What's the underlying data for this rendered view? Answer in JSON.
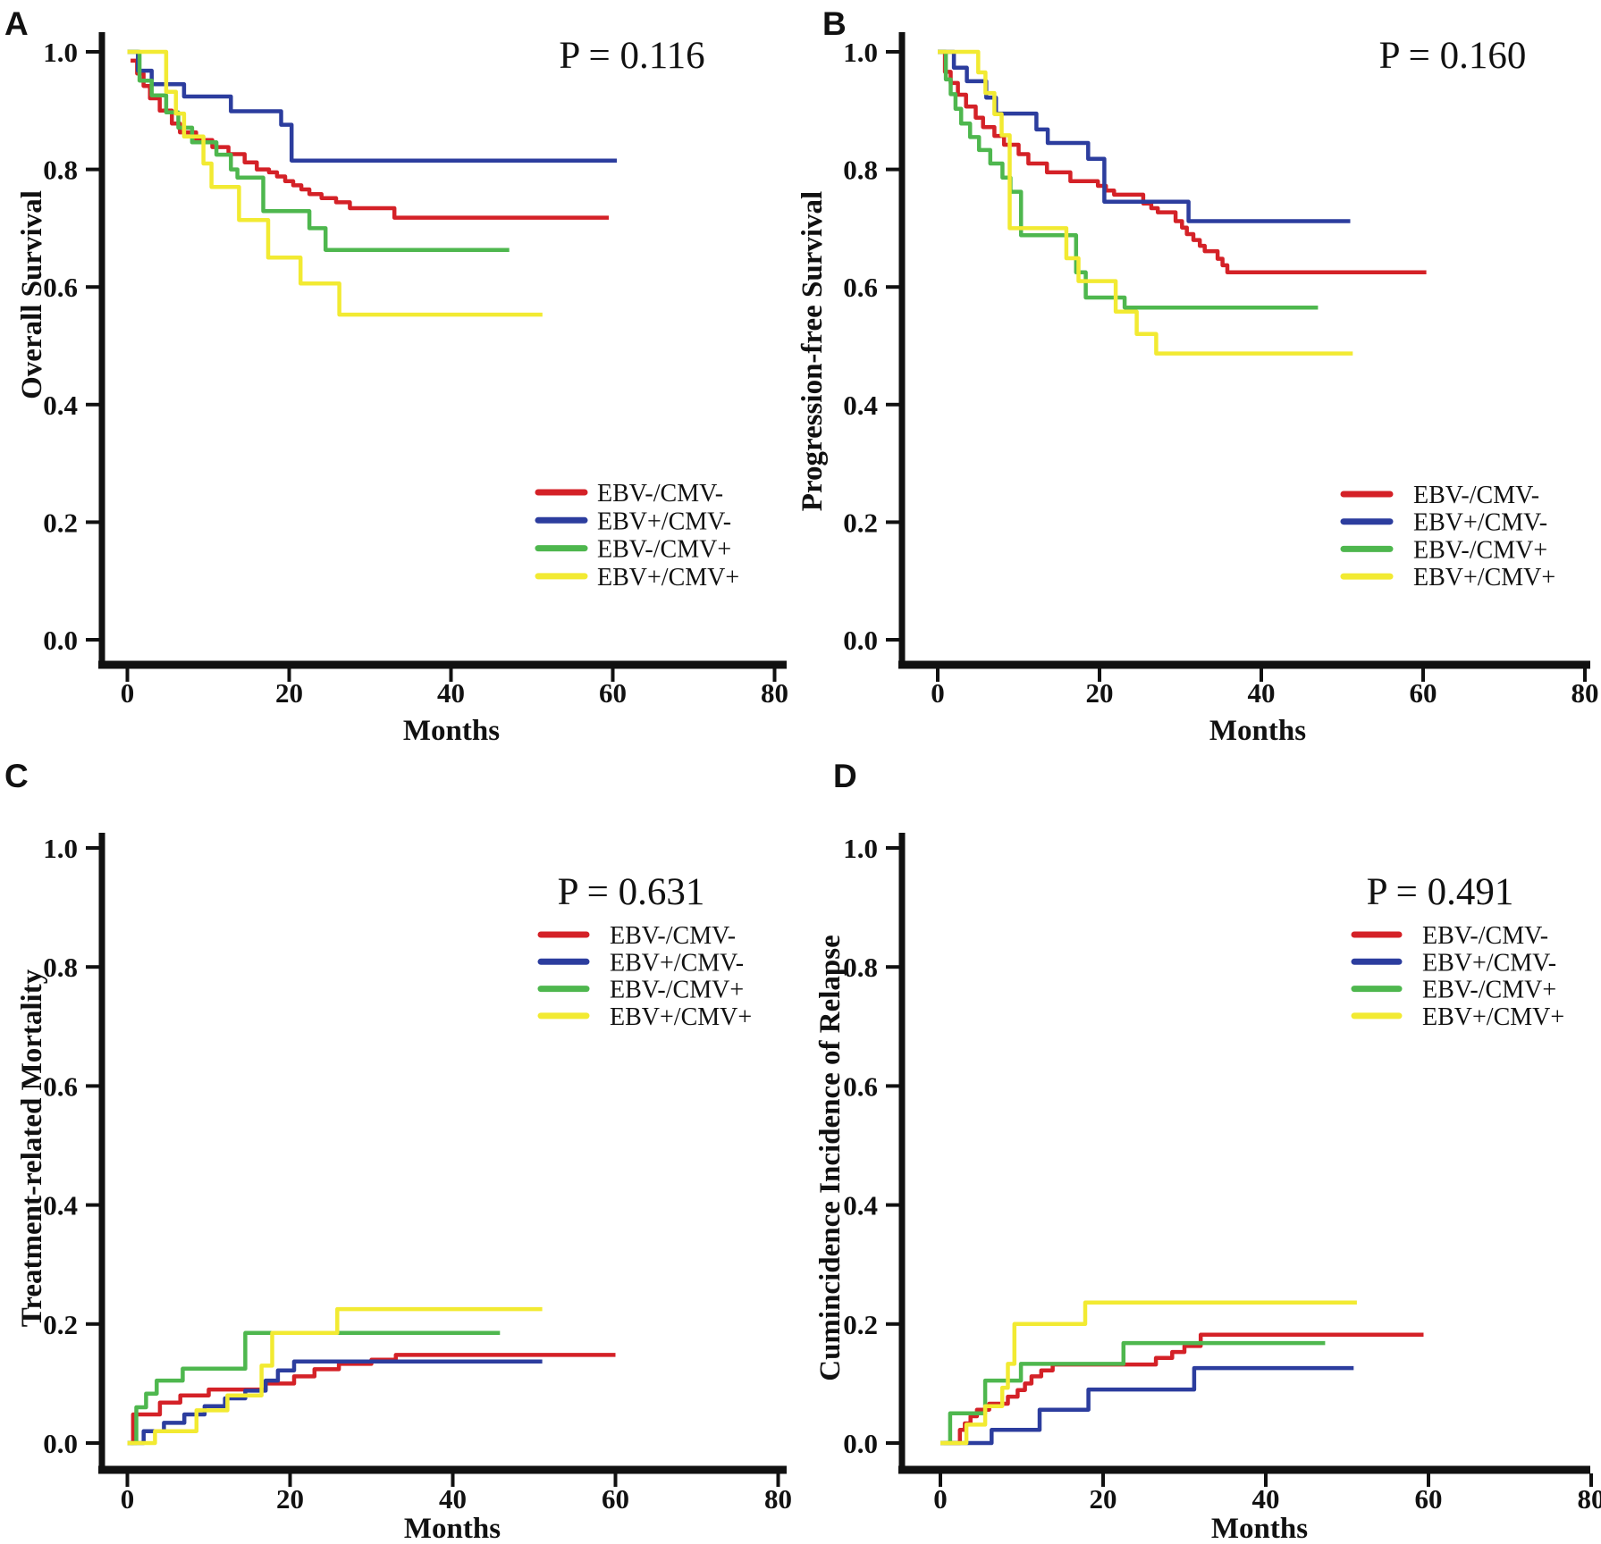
{
  "figure": {
    "background": "#ffffff",
    "description": "Four-panel Kaplan-Meier survival and cumulative incidence step curves comparing EBV/CMV reactivation groups",
    "axis_color": "#111111"
  },
  "chart_data": [
    {
      "panel_letter": "A",
      "type": "line",
      "subtype": "kaplan-meier-step",
      "p_value": "P = 0.116",
      "xlabel": "Months",
      "ylabel": "Overall Survival",
      "xlim": [
        0,
        80
      ],
      "ylim": [
        0.0,
        1.0
      ],
      "xticks": [
        0,
        20,
        40,
        60,
        80
      ],
      "xtick_labels": [
        "0",
        "20",
        "40",
        "60",
        "80"
      ],
      "yticks": [
        1.0,
        0.8,
        0.6,
        0.4,
        0.2,
        0.0
      ],
      "ytick_labels": [
        "1.0",
        "0.8",
        "0.6",
        "0.4",
        "0.2",
        "0.0"
      ],
      "grid": false,
      "legend_position": "lower-right",
      "series": [
        {
          "name": "EBV-/CMV-",
          "color": "#d42127",
          "points": [
            [
              0.4,
              0.985
            ],
            [
              1.2,
              0.963
            ],
            [
              2,
              0.942
            ],
            [
              2.8,
              0.921
            ],
            [
              4,
              0.9
            ],
            [
              5.5,
              0.878
            ],
            [
              6.5,
              0.863
            ],
            [
              8.5,
              0.85
            ],
            [
              10.5,
              0.838
            ],
            [
              12.5,
              0.826
            ],
            [
              14.5,
              0.812
            ],
            [
              16,
              0.8
            ],
            [
              17.5,
              0.795
            ],
            [
              18.5,
              0.788
            ],
            [
              19.5,
              0.78
            ],
            [
              20.5,
              0.773
            ],
            [
              21.5,
              0.766
            ],
            [
              22.5,
              0.758
            ],
            [
              24,
              0.751
            ],
            [
              25.8,
              0.744
            ],
            [
              27.5,
              0.734
            ],
            [
              33,
              0.718
            ]
          ],
          "end_month": 59.5
        },
        {
          "name": "EBV+/CMV-",
          "color": "#2c3d9e",
          "points": [
            [
              0,
              1.0
            ],
            [
              1.3,
              0.968
            ],
            [
              3,
              0.945
            ],
            [
              7,
              0.924
            ],
            [
              12.8,
              0.899
            ],
            [
              19,
              0.876
            ],
            [
              20.3,
              0.815
            ]
          ],
          "end_month": 60.5
        },
        {
          "name": "EBV-/CMV+",
          "color": "#4eb74e",
          "points": [
            [
              0,
              1.0
            ],
            [
              1.5,
              0.951
            ],
            [
              3,
              0.926
            ],
            [
              4.8,
              0.897
            ],
            [
              6.3,
              0.871
            ],
            [
              8,
              0.846
            ],
            [
              11,
              0.825
            ],
            [
              12.8,
              0.8
            ],
            [
              13.6,
              0.786
            ],
            [
              16.8,
              0.729
            ],
            [
              22.5,
              0.7
            ],
            [
              24.5,
              0.663
            ]
          ],
          "end_month": 47.2
        },
        {
          "name": "EBV+/CMV+",
          "color": "#f2ea32",
          "points": [
            [
              0,
              1.0
            ],
            [
              4.8,
              0.932
            ],
            [
              6,
              0.895
            ],
            [
              7,
              0.856
            ],
            [
              9.4,
              0.81
            ],
            [
              10.4,
              0.77
            ],
            [
              13.8,
              0.714
            ],
            [
              17.4,
              0.65
            ],
            [
              21.4,
              0.606
            ],
            [
              26.2,
              0.553
            ]
          ],
          "end_month": 51.3
        }
      ]
    },
    {
      "panel_letter": "B",
      "type": "line",
      "subtype": "kaplan-meier-step",
      "p_value": "P = 0.160",
      "xlabel": "Months",
      "ylabel": "Progression-free Survival",
      "xlim": [
        0,
        80
      ],
      "ylim": [
        0.0,
        1.0
      ],
      "xticks": [
        0,
        20,
        40,
        60,
        80
      ],
      "xtick_labels": [
        "0",
        "20",
        "40",
        "60",
        "80"
      ],
      "yticks": [
        1.0,
        0.8,
        0.6,
        0.4,
        0.2,
        0.0
      ],
      "ytick_labels": [
        "1.0",
        "0.8",
        "0.6",
        "0.4",
        "0.2",
        "0.0"
      ],
      "grid": false,
      "legend_position": "lower-right",
      "series": [
        {
          "name": "EBV-/CMV-",
          "color": "#d42127",
          "points": [
            [
              0,
              1.0
            ],
            [
              0.9,
              0.966
            ],
            [
              1.6,
              0.947
            ],
            [
              2.5,
              0.927
            ],
            [
              3.5,
              0.907
            ],
            [
              4.7,
              0.888
            ],
            [
              5.6,
              0.872
            ],
            [
              7,
              0.857
            ],
            [
              8.2,
              0.842
            ],
            [
              10,
              0.826
            ],
            [
              11.2,
              0.81
            ],
            [
              13.5,
              0.795
            ],
            [
              16.4,
              0.78
            ],
            [
              19.8,
              0.772
            ],
            [
              20.8,
              0.764
            ],
            [
              21.8,
              0.757
            ],
            [
              25.4,
              0.742
            ],
            [
              26.4,
              0.734
            ],
            [
              27.2,
              0.727
            ],
            [
              29.4,
              0.712
            ],
            [
              30.2,
              0.701
            ],
            [
              30.8,
              0.69
            ],
            [
              31.6,
              0.68
            ],
            [
              32.4,
              0.67
            ],
            [
              33,
              0.661
            ],
            [
              34.6,
              0.648
            ],
            [
              35.2,
              0.637
            ],
            [
              35.8,
              0.625
            ]
          ],
          "end_month": 60.4
        },
        {
          "name": "EBV+/CMV-",
          "color": "#2c3d9e",
          "points": [
            [
              0,
              1.0
            ],
            [
              2,
              0.973
            ],
            [
              3.6,
              0.95
            ],
            [
              6,
              0.922
            ],
            [
              7.2,
              0.895
            ],
            [
              12.2,
              0.868
            ],
            [
              13.6,
              0.845
            ],
            [
              18.6,
              0.818
            ],
            [
              20.6,
              0.745
            ],
            [
              31,
              0.712
            ]
          ],
          "end_month": 51.0
        },
        {
          "name": "EBV-/CMV+",
          "color": "#4eb74e",
          "points": [
            [
              0,
              1.0
            ],
            [
              1,
              0.953
            ],
            [
              1.6,
              0.928
            ],
            [
              2.2,
              0.903
            ],
            [
              2.9,
              0.878
            ],
            [
              4,
              0.855
            ],
            [
              5.1,
              0.833
            ],
            [
              6.5,
              0.81
            ],
            [
              8,
              0.786
            ],
            [
              9,
              0.762
            ],
            [
              10.3,
              0.688
            ],
            [
              17.1,
              0.625
            ],
            [
              18.3,
              0.582
            ],
            [
              23.1,
              0.565
            ]
          ],
          "end_month": 47.0
        },
        {
          "name": "EBV+/CMV+",
          "color": "#f2ea32",
          "points": [
            [
              0,
              1.0
            ],
            [
              5,
              0.965
            ],
            [
              5.9,
              0.93
            ],
            [
              7,
              0.894
            ],
            [
              7.9,
              0.858
            ],
            [
              8.9,
              0.7
            ],
            [
              15.9,
              0.649
            ],
            [
              17.4,
              0.61
            ],
            [
              22,
              0.558
            ],
            [
              24.6,
              0.52
            ],
            [
              27,
              0.487
            ]
          ],
          "end_month": 51.3
        }
      ]
    },
    {
      "panel_letter": "C",
      "type": "line",
      "subtype": "cumulative-incidence-step",
      "p_value": "P = 0.631",
      "xlabel": "Months",
      "ylabel": "Treatment-related Mortality",
      "xlim": [
        0,
        80
      ],
      "ylim": [
        0.0,
        1.0
      ],
      "xticks": [
        0,
        20,
        40,
        60,
        80
      ],
      "xtick_labels": [
        "0",
        "20",
        "40",
        "60",
        "80"
      ],
      "yticks": [
        1.0,
        0.8,
        0.6,
        0.4,
        0.2,
        0.0
      ],
      "ytick_labels": [
        "1.0",
        "0.8",
        "0.6",
        "0.4",
        "0.2",
        "0.0"
      ],
      "grid": false,
      "legend_position": "upper-right",
      "series": [
        {
          "name": "EBV-/CMV-",
          "color": "#d42127",
          "points": [
            [
              0.4,
              0
            ],
            [
              0.7,
              0.048
            ],
            [
              4,
              0.068
            ],
            [
              6.5,
              0.08
            ],
            [
              10,
              0.09
            ],
            [
              17,
              0.1
            ],
            [
              20.5,
              0.112
            ],
            [
              23,
              0.124
            ],
            [
              26,
              0.133
            ],
            [
              30,
              0.14
            ],
            [
              33,
              0.148
            ]
          ],
          "end_month": 60.0
        },
        {
          "name": "EBV+/CMV-",
          "color": "#2c3d9e",
          "points": [
            [
              0,
              0
            ],
            [
              2,
              0.02
            ],
            [
              4.5,
              0.034
            ],
            [
              7,
              0.048
            ],
            [
              9.5,
              0.062
            ],
            [
              12,
              0.075
            ],
            [
              14.5,
              0.088
            ],
            [
              17,
              0.105
            ],
            [
              18.5,
              0.122
            ],
            [
              20.5,
              0.137
            ]
          ],
          "end_month": 51.0
        },
        {
          "name": "EBV-/CMV+",
          "color": "#4eb74e",
          "points": [
            [
              0,
              0
            ],
            [
              1.1,
              0.06
            ],
            [
              2.3,
              0.083
            ],
            [
              3.6,
              0.105
            ],
            [
              6.8,
              0.125
            ],
            [
              14.5,
              0.185
            ]
          ],
          "end_month": 45.8
        },
        {
          "name": "EBV+/CMV+",
          "color": "#f2ea32",
          "points": [
            [
              0,
              0
            ],
            [
              3.4,
              0.02
            ],
            [
              8.5,
              0.055
            ],
            [
              12.3,
              0.08
            ],
            [
              16.5,
              0.13
            ],
            [
              17.8,
              0.185
            ],
            [
              25.8,
              0.225
            ]
          ],
          "end_month": 51.0
        }
      ]
    },
    {
      "panel_letter": "D",
      "type": "line",
      "subtype": "cumulative-incidence-step",
      "p_value": "P = 0.491",
      "xlabel": "Months",
      "ylabel": "Cumincidence Incidence of Relapse",
      "xlim": [
        0,
        80
      ],
      "ylim": [
        0.0,
        1.0
      ],
      "xticks": [
        0,
        20,
        40,
        60,
        80
      ],
      "xtick_labels": [
        "0",
        "20",
        "40",
        "60",
        "80"
      ],
      "yticks": [
        1.0,
        0.8,
        0.6,
        0.4,
        0.2,
        0.0
      ],
      "ytick_labels": [
        "1.0",
        "0.8",
        "0.6",
        "0.4",
        "0.2",
        "0.0"
      ],
      "grid": false,
      "legend_position": "upper-right",
      "series": [
        {
          "name": "EBV-/CMV-",
          "color": "#d42127",
          "points": [
            [
              0.4,
              0
            ],
            [
              2.4,
              0.022
            ],
            [
              3,
              0.033
            ],
            [
              3.7,
              0.045
            ],
            [
              4.5,
              0.056
            ],
            [
              6,
              0.066
            ],
            [
              8.3,
              0.078
            ],
            [
              9.5,
              0.089
            ],
            [
              10.4,
              0.1
            ],
            [
              11.2,
              0.112
            ],
            [
              12.4,
              0.122
            ],
            [
              13.8,
              0.132
            ],
            [
              26.5,
              0.143
            ],
            [
              28.5,
              0.153
            ],
            [
              30,
              0.163
            ],
            [
              32,
              0.182
            ]
          ],
          "end_month": 59.4
        },
        {
          "name": "EBV+/CMV-",
          "color": "#2c3d9e",
          "points": [
            [
              0,
              0
            ],
            [
              6.3,
              0.022
            ],
            [
              12.2,
              0.056
            ],
            [
              18.2,
              0.09
            ],
            [
              31.2,
              0.126
            ]
          ],
          "end_month": 50.8
        },
        {
          "name": "EBV-/CMV+",
          "color": "#4eb74e",
          "points": [
            [
              0,
              0
            ],
            [
              1.2,
              0.05
            ],
            [
              5.5,
              0.105
            ],
            [
              9.9,
              0.133
            ],
            [
              22.5,
              0.168
            ]
          ],
          "end_month": 47.3
        },
        {
          "name": "EBV+/CMV+",
          "color": "#f2ea32",
          "points": [
            [
              0,
              0
            ],
            [
              3.2,
              0.031
            ],
            [
              5.5,
              0.062
            ],
            [
              7.6,
              0.093
            ],
            [
              8.3,
              0.133
            ],
            [
              9.1,
              0.2
            ],
            [
              17.8,
              0.236
            ]
          ],
          "end_month": 51.2
        }
      ]
    }
  ]
}
